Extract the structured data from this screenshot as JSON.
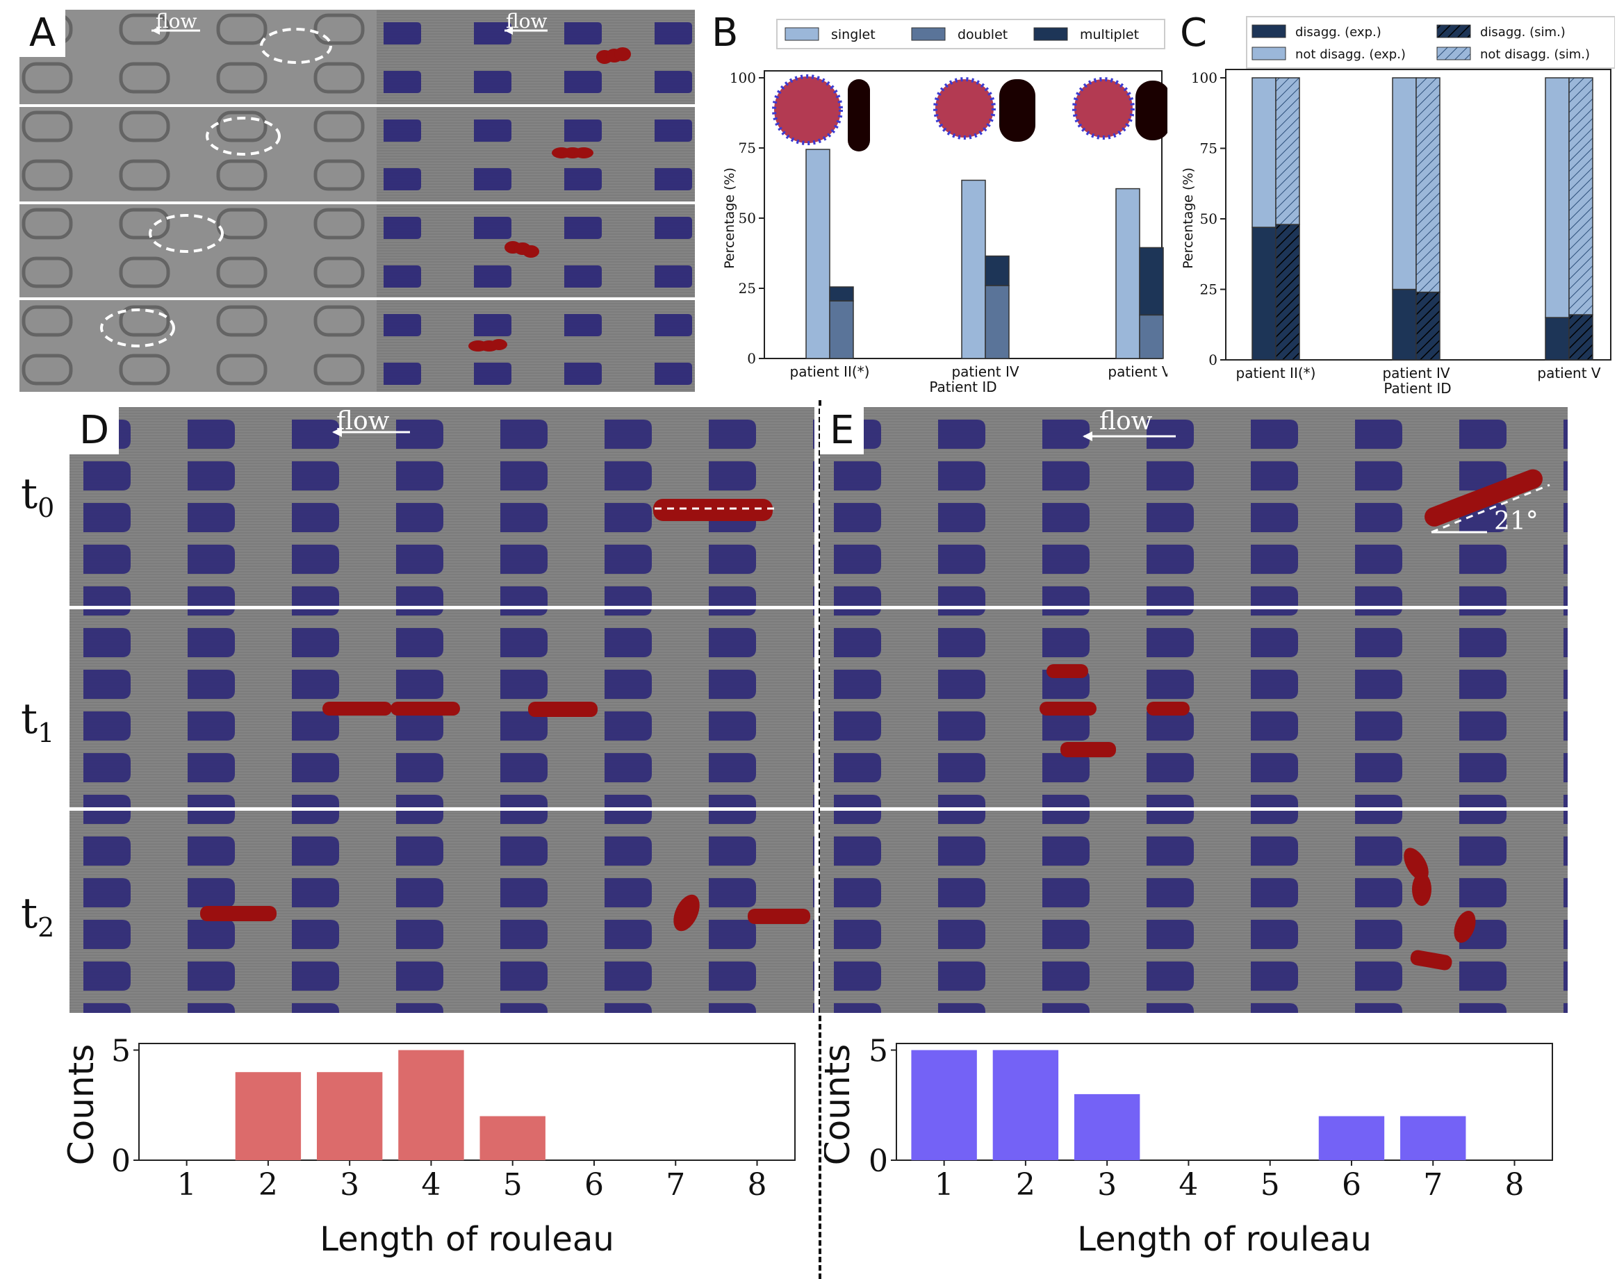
{
  "panels": {
    "A": {
      "letter": "A",
      "flow_left": "flow",
      "flow_right": "flow"
    },
    "B": {
      "letter": "B"
    },
    "C": {
      "letter": "C"
    },
    "D": {
      "letter": "D",
      "flow": "flow"
    },
    "E": {
      "letter": "E",
      "flow": "flow",
      "angle": "21°"
    }
  },
  "time_labels": [
    {
      "base": "t",
      "sub": "0"
    },
    {
      "base": "t",
      "sub": "1"
    },
    {
      "base": "t",
      "sub": "2"
    }
  ],
  "colors": {
    "singlet": "#9bb7d9",
    "doublet": "#5a7499",
    "multiplet": "#1d3557",
    "disagg": "#1d3557",
    "not_disagg": "#9bb7d9",
    "hist_red": "#dc6b6b",
    "hist_blue": "#7462f6",
    "obstacle": "#2f2a78",
    "rbc": "#9b0f0f"
  },
  "chart_data": [
    {
      "id": "B",
      "type": "bar",
      "title": "",
      "xlabel": "Patient ID",
      "ylabel": "Percentage (%)",
      "categories": [
        "patient II(*)",
        "patient IV",
        "patient V"
      ],
      "ylim": [
        0,
        100
      ],
      "yticks": [
        "0",
        "25",
        "50",
        "75",
        "100"
      ],
      "legend": [
        "singlet",
        "doublet",
        "multiplet"
      ],
      "series": [
        {
          "name": "singlet",
          "values": [
            74.5,
            63.5,
            60.5
          ]
        },
        {
          "name": "doublet",
          "values": [
            20.5,
            26,
            15.5
          ]
        },
        {
          "name": "multiplet",
          "values": [
            5,
            10.5,
            24
          ]
        }
      ]
    },
    {
      "id": "C",
      "type": "bar",
      "title": "",
      "xlabel": "Patient ID",
      "ylabel": "Percentage (%)",
      "categories": [
        "patient II(*)",
        "patient IV",
        "patient V"
      ],
      "ylim": [
        0,
        100
      ],
      "yticks": [
        "0",
        "25",
        "50",
        "75",
        "100"
      ],
      "legend": [
        "disagg. (exp.)",
        "not disagg. (exp.)",
        "disagg. (sim.)",
        "not disagg. (sim.)"
      ],
      "series": [
        {
          "name": "disagg. (exp.)",
          "values": [
            47,
            25,
            15
          ]
        },
        {
          "name": "not disagg. (exp.)",
          "values": [
            53,
            75,
            85
          ]
        },
        {
          "name": "disagg. (sim.)",
          "values": [
            48,
            24,
            16
          ]
        },
        {
          "name": "not disagg. (sim.)",
          "values": [
            52,
            76,
            84
          ]
        }
      ]
    },
    {
      "id": "D-hist",
      "type": "bar",
      "title": "",
      "xlabel": "Length of rouleau",
      "ylabel": "Counts",
      "categories": [
        "1",
        "2",
        "3",
        "4",
        "5",
        "6",
        "7",
        "8"
      ],
      "values": [
        0,
        4,
        4,
        5,
        2,
        0,
        0,
        0
      ],
      "ylim": [
        0,
        5.3
      ],
      "yticks": [
        "0",
        "5"
      ]
    },
    {
      "id": "E-hist",
      "type": "bar",
      "title": "",
      "xlabel": "Length of rouleau",
      "ylabel": "Counts",
      "categories": [
        "1",
        "2",
        "3",
        "4",
        "5",
        "6",
        "7",
        "8"
      ],
      "values": [
        5,
        5,
        3,
        0,
        0,
        2,
        2,
        0
      ],
      "ylim": [
        0,
        5.3
      ],
      "yticks": [
        "0",
        "5"
      ]
    }
  ]
}
